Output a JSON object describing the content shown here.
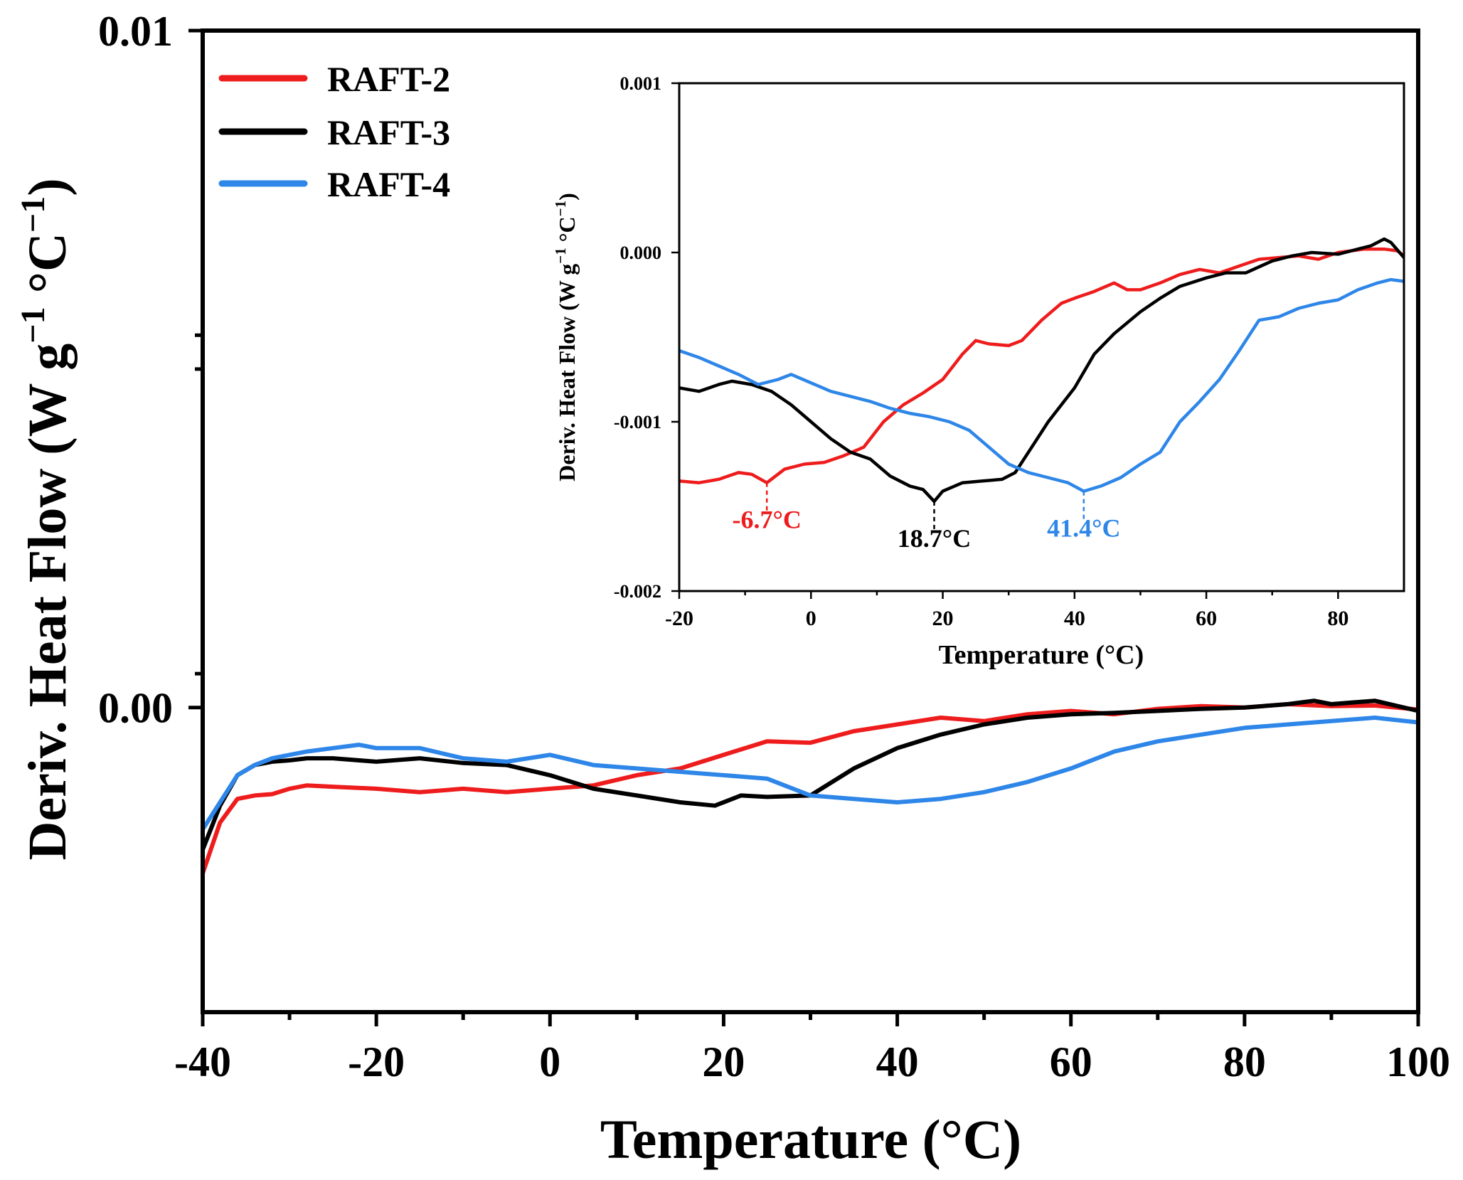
{
  "chart_data": [
    {
      "id": "main",
      "type": "line",
      "xlabel": "Temperature (°C)",
      "ylabel_main": "Deriv. Heat Flow (W g",
      "ylabel_sup1": "−1",
      "ylabel_mid": " °C",
      "ylabel_sup2": "−1",
      "ylabel_end": ")",
      "xlim": [
        -40,
        100
      ],
      "ylim": [
        -0.0045,
        0.01
      ],
      "xticks": [
        -40,
        -20,
        0,
        20,
        40,
        60,
        80,
        100
      ],
      "xtick_labels": [
        "-40",
        "-20",
        "0",
        "20",
        "40",
        "60",
        "80",
        "100"
      ],
      "yticks": [
        0,
        0.01
      ],
      "ytick_labels": [
        "0.00",
        "0.01"
      ],
      "legend": {
        "placement": "top-left",
        "entries": [
          {
            "name": "RAFT-2",
            "color": "#ee1c1c"
          },
          {
            "name": "RAFT-3",
            "color": "#000000"
          },
          {
            "name": "RAFT-4",
            "color": "#2e86e8"
          }
        ]
      },
      "series": [
        {
          "name": "RAFT-2",
          "color": "#ee1c1c",
          "x": [
            -40,
            -38,
            -36,
            -34,
            -32,
            -30,
            -28,
            -25,
            -20,
            -15,
            -10,
            -5,
            0,
            5,
            10,
            15,
            20,
            25,
            30,
            35,
            40,
            45,
            50,
            55,
            60,
            65,
            70,
            75,
            80,
            85,
            90,
            95,
            100
          ],
          "y": [
            -0.00245,
            -0.0017,
            -0.00135,
            -0.0013,
            -0.00128,
            -0.0012,
            -0.00115,
            -0.00117,
            -0.0012,
            -0.00125,
            -0.0012,
            -0.00125,
            -0.0012,
            -0.00115,
            -0.001,
            -0.0009,
            -0.0007,
            -0.0005,
            -0.00052,
            -0.00035,
            -0.00025,
            -0.00015,
            -0.0002,
            -0.0001,
            -5e-05,
            -0.0001,
            -2e-05,
            2e-05,
            0.0,
            5e-05,
            2e-05,
            3e-05,
            -3e-05
          ]
        },
        {
          "name": "RAFT-3",
          "color": "#000000",
          "x": [
            -40,
            -38,
            -36,
            -34,
            -32,
            -30,
            -28,
            -25,
            -20,
            -15,
            -10,
            -5,
            0,
            5,
            10,
            15,
            19,
            22,
            25,
            30,
            35,
            40,
            45,
            50,
            55,
            60,
            65,
            70,
            75,
            80,
            85,
            88,
            90,
            95,
            100
          ],
          "y": [
            -0.0021,
            -0.00145,
            -0.001,
            -0.00085,
            -0.0008,
            -0.00078,
            -0.00075,
            -0.00075,
            -0.0008,
            -0.00075,
            -0.00082,
            -0.00085,
            -0.001,
            -0.0012,
            -0.0013,
            -0.0014,
            -0.00145,
            -0.0013,
            -0.00132,
            -0.0013,
            -0.0009,
            -0.0006,
            -0.0004,
            -0.00025,
            -0.00015,
            -0.0001,
            -8e-05,
            -5e-05,
            -2e-05,
            0.0,
            5e-05,
            0.0001,
            5e-05,
            0.0001,
            -5e-05
          ]
        },
        {
          "name": "RAFT-4",
          "color": "#2e86e8",
          "x": [
            -40,
            -38,
            -36,
            -34,
            -32,
            -30,
            -28,
            -25,
            -22,
            -20,
            -15,
            -10,
            -5,
            0,
            5,
            10,
            15,
            20,
            25,
            30,
            35,
            40,
            45,
            50,
            55,
            60,
            65,
            70,
            75,
            80,
            85,
            90,
            95,
            100
          ],
          "y": [
            -0.0018,
            -0.0014,
            -0.001,
            -0.00085,
            -0.00075,
            -0.0007,
            -0.00065,
            -0.0006,
            -0.00055,
            -0.0006,
            -0.0006,
            -0.00075,
            -0.0008,
            -0.0007,
            -0.00085,
            -0.0009,
            -0.00095,
            -0.001,
            -0.00105,
            -0.0013,
            -0.00135,
            -0.0014,
            -0.00135,
            -0.00125,
            -0.0011,
            -0.0009,
            -0.00065,
            -0.0005,
            -0.0004,
            -0.0003,
            -0.00025,
            -0.0002,
            -0.00015,
            -0.00022
          ]
        }
      ]
    },
    {
      "id": "inset",
      "type": "line",
      "xlabel": "Temperature (°C)",
      "ylabel_main": "Deriv. Heat Flow (W g",
      "ylabel_sup1": "−1",
      "ylabel_mid": " °C",
      "ylabel_sup2": "−1",
      "ylabel_end": ")",
      "xlim": [
        -20,
        90
      ],
      "ylim": [
        -0.002,
        0.001
      ],
      "xticks": [
        -20,
        0,
        20,
        40,
        60,
        80
      ],
      "xtick_labels": [
        "-20",
        "0",
        "20",
        "40",
        "60",
        "80"
      ],
      "yticks": [
        -0.002,
        -0.001,
        0.0,
        0.001
      ],
      "ytick_labels": [
        "-0.002",
        "-0.001",
        "0.000",
        "0.001"
      ],
      "annotations": [
        {
          "text": "-6.7°C",
          "x": -6.7,
          "y": -0.00136,
          "color": "#ee1c1c"
        },
        {
          "text": "18.7°C",
          "x": 18.7,
          "y": -0.00147,
          "color": "#000000"
        },
        {
          "text": "41.4°C",
          "x": 41.4,
          "y": -0.00141,
          "color": "#2e86e8"
        }
      ],
      "series": [
        {
          "name": "RAFT-2",
          "color": "#ee1c1c",
          "x": [
            -20,
            -17,
            -14,
            -11,
            -9,
            -6.7,
            -4,
            -1,
            2,
            5,
            8,
            11,
            14,
            17,
            20,
            23,
            25,
            27,
            30,
            32,
            35,
            38,
            40,
            43,
            46,
            48,
            50,
            53,
            56,
            59,
            62,
            65,
            68,
            71,
            74,
            77,
            80,
            84,
            87,
            89,
            90
          ],
          "y": [
            -0.00135,
            -0.00136,
            -0.00134,
            -0.0013,
            -0.00131,
            -0.00136,
            -0.00128,
            -0.00125,
            -0.00124,
            -0.0012,
            -0.00115,
            -0.001,
            -0.0009,
            -0.00083,
            -0.00075,
            -0.0006,
            -0.00052,
            -0.00054,
            -0.00055,
            -0.00052,
            -0.0004,
            -0.0003,
            -0.00027,
            -0.00023,
            -0.00018,
            -0.00022,
            -0.00022,
            -0.00018,
            -0.00013,
            -0.0001,
            -0.00012,
            -8e-05,
            -4e-05,
            -3e-05,
            -2e-05,
            -4e-05,
            0.0,
            2e-05,
            2e-05,
            1e-05,
            -2e-05
          ]
        },
        {
          "name": "RAFT-3",
          "color": "#000000",
          "x": [
            -20,
            -17,
            -14,
            -12,
            -9,
            -6,
            -3,
            0,
            3,
            6,
            9,
            12,
            15,
            17,
            18.7,
            20,
            23,
            26,
            29,
            31,
            33,
            36,
            40,
            43,
            46,
            50,
            53,
            56,
            60,
            63,
            66,
            70,
            73,
            76,
            80,
            83,
            85,
            87,
            88,
            90
          ],
          "y": [
            -0.0008,
            -0.00082,
            -0.00078,
            -0.00076,
            -0.00078,
            -0.00082,
            -0.0009,
            -0.001,
            -0.0011,
            -0.00118,
            -0.00122,
            -0.00132,
            -0.00138,
            -0.0014,
            -0.00147,
            -0.00141,
            -0.00136,
            -0.00135,
            -0.00134,
            -0.0013,
            -0.00118,
            -0.001,
            -0.0008,
            -0.0006,
            -0.00048,
            -0.00035,
            -0.00027,
            -0.0002,
            -0.00015,
            -0.00012,
            -0.00012,
            -5e-05,
            -2e-05,
            0.0,
            -1e-05,
            2e-05,
            4e-05,
            8e-05,
            6e-05,
            -3e-05
          ]
        },
        {
          "name": "RAFT-4",
          "color": "#2e86e8",
          "x": [
            -20,
            -17,
            -14,
            -11,
            -8,
            -5,
            -3,
            0,
            3,
            6,
            9,
            12,
            15,
            18,
            21,
            24,
            27,
            30,
            33,
            36,
            39,
            41.4,
            44,
            47,
            50,
            53,
            56,
            59,
            62,
            65,
            68,
            71,
            74,
            77,
            80,
            83,
            86,
            88,
            90
          ],
          "y": [
            -0.00058,
            -0.00062,
            -0.00067,
            -0.00072,
            -0.00078,
            -0.00075,
            -0.00072,
            -0.00077,
            -0.00082,
            -0.00085,
            -0.00088,
            -0.00092,
            -0.00095,
            -0.00097,
            -0.001,
            -0.00105,
            -0.00115,
            -0.00125,
            -0.0013,
            -0.00133,
            -0.00136,
            -0.00141,
            -0.00138,
            -0.00133,
            -0.00125,
            -0.00118,
            -0.001,
            -0.00088,
            -0.00075,
            -0.00058,
            -0.0004,
            -0.00038,
            -0.00033,
            -0.0003,
            -0.00028,
            -0.00022,
            -0.00018,
            -0.00016,
            -0.00017
          ]
        }
      ]
    }
  ]
}
